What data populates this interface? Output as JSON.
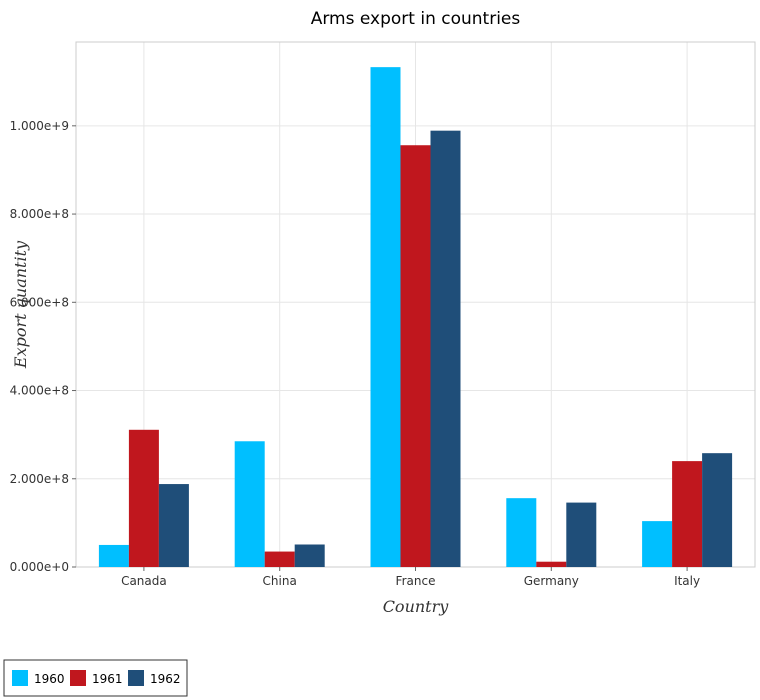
{
  "chart_data": {
    "type": "bar",
    "title": "Arms export in countries",
    "xlabel": "Country",
    "ylabel": "Export quantity",
    "categories": [
      "Canada",
      "China",
      "France",
      "Germany",
      "Italy"
    ],
    "series": [
      {
        "name": "1960",
        "color": "#00bfff",
        "values": [
          50000000,
          285000000,
          1133000000,
          156000000,
          104000000
        ]
      },
      {
        "name": "1961",
        "color": "#c0171e",
        "values": [
          311000000,
          35000000,
          956000000,
          12000000,
          240000000
        ]
      },
      {
        "name": "1962",
        "color": "#1f4e79",
        "values": [
          188000000,
          51000000,
          989000000,
          146000000,
          258000000
        ]
      }
    ],
    "yticks": [
      0,
      200000000,
      400000000,
      600000000,
      800000000,
      1000000000
    ],
    "ytick_labels": [
      "0.000e+0",
      "2.000e+8",
      "4.000e+8",
      "6.000e+8",
      "8.000e+8",
      "1.000e+9"
    ],
    "ylim": [
      0,
      1190000000
    ],
    "grid": true,
    "legend_position": "bottom-left"
  }
}
